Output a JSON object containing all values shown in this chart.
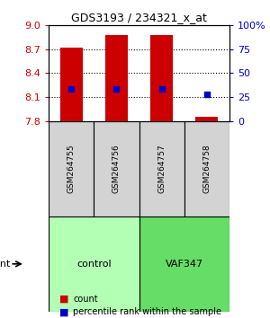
{
  "title": "GDS3193 / 234321_x_at",
  "samples": [
    "GSM264755",
    "GSM264756",
    "GSM264757",
    "GSM264758"
  ],
  "groups": [
    "control",
    "control",
    "VAF347",
    "VAF347"
  ],
  "group_labels": [
    "control",
    "VAF347"
  ],
  "group_colors": [
    "#b3ffb3",
    "#66ff66"
  ],
  "bar_values": [
    8.72,
    8.88,
    8.88,
    7.85
  ],
  "bar_bottom": 7.8,
  "bar_color": "#cc0000",
  "bar_width": 0.5,
  "percentile_values": [
    33,
    33,
    33,
    28
  ],
  "percentile_color": "#0000cc",
  "ylim": [
    7.8,
    9.0
  ],
  "yticks": [
    7.8,
    8.1,
    8.4,
    8.7,
    9.0
  ],
  "y2lim": [
    0,
    100
  ],
  "y2ticks": [
    0,
    25,
    50,
    75,
    100
  ],
  "y2ticklabels": [
    "0",
    "25",
    "50",
    "75",
    "100%"
  ],
  "background_color": "#ffffff",
  "plot_bg": "#ffffff",
  "grid_color": "#000000",
  "ylabel_color": "#cc0000",
  "y2label_color": "#0000cc"
}
